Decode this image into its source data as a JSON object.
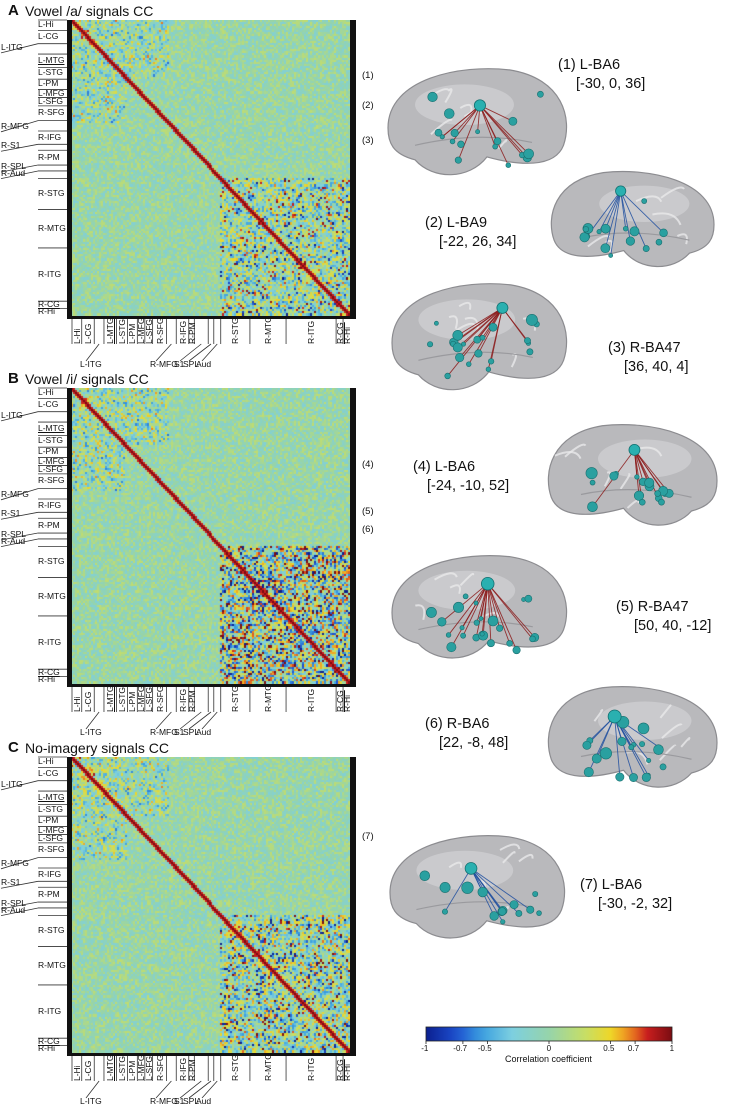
{
  "panels": [
    {
      "letter": "A",
      "title": "Vowel /a/ signals CC",
      "regions_y": [
        "L-Hi",
        "L-CG",
        "L-ITG",
        "L-MTG",
        "L-STG",
        "L-PM",
        "L-MFG",
        "L-SFG",
        "R-SFG",
        "R-MFG",
        "R-IFG",
        "R-S1",
        "R-PM",
        "R-SPL",
        "R-Aud",
        "R-STG",
        "R-MTG",
        "R-ITG",
        "R-CG",
        "R-Hi"
      ],
      "regions_x": [
        "L-Hi",
        "L-CG",
        "L-ITG",
        "L-MTG",
        "L-STG",
        "L-PM",
        "L-MFG",
        "L-SFG",
        "R-SFG",
        "R-MFG",
        "R-IFG",
        "R-PM",
        "S1",
        "SPL",
        "Aud",
        "R-STG",
        "R-MTG",
        "R-ITG",
        "R-CG",
        "R-Hi"
      ],
      "markers": [
        "(1)",
        "(2)",
        "(3)"
      ]
    },
    {
      "letter": "B",
      "title": "Vowel /i/ signals CC",
      "regions_y": [
        "L-Hi",
        "L-CG",
        "L-ITG",
        "L-MTG",
        "L-STG",
        "L-PM",
        "L-MFG",
        "L-SFG",
        "R-SFG",
        "R-MFG",
        "R-IFG",
        "R-S1",
        "R-PM",
        "R-SPL",
        "R-Aud",
        "R-STG",
        "R-MTG",
        "R-ITG",
        "R-CG",
        "R-Hi"
      ],
      "regions_x": [
        "L-Hi",
        "L-CG",
        "L-ITG",
        "L-MTG",
        "L-STG",
        "L-PM",
        "L-MFG",
        "L-SFG",
        "R-SFG",
        "R-MFG",
        "R-IFG",
        "R-PM",
        "S1",
        "SPL",
        "Aud",
        "R-STG",
        "R-MTG",
        "R-ITG",
        "R-CG",
        "R-Hi"
      ],
      "markers": [
        "(4)",
        "(5)",
        "(6)"
      ]
    },
    {
      "letter": "C",
      "title": "No-imagery signals CC",
      "regions_y": [
        "L-Hi",
        "L-CG",
        "L-ITG",
        "L-MTG",
        "L-STG",
        "L-PM",
        "L-MFG",
        "L-SFG",
        "R-SFG",
        "R-MFG",
        "R-IFG",
        "R-S1",
        "R-PM",
        "R-SPL",
        "R-Aud",
        "R-STG",
        "R-MTG",
        "R-ITG",
        "R-CG",
        "R-Hi"
      ],
      "regions_x": [
        "L-Hi",
        "L-CG",
        "L-ITG",
        "L-MTG",
        "L-STG",
        "L-PM",
        "L-MFG",
        "L-SFG",
        "R-SFG",
        "R-MFG",
        "R-IFG",
        "R-PM",
        "S1",
        "SPL",
        "Aud",
        "R-STG",
        "R-MTG",
        "R-ITG",
        "R-CG",
        "R-Hi"
      ],
      "markers": [
        "(7)"
      ]
    }
  ],
  "brains": [
    {
      "label": "(1) L-BA6",
      "coords": "[-30, 0, 36]"
    },
    {
      "label": "(2) L-BA9",
      "coords": "[-22, 26, 34]"
    },
    {
      "label": "(3) R-BA47",
      "coords": "[36, 40, 4]"
    },
    {
      "label": "(4) L-BA6",
      "coords": "[-24, -10, 52]"
    },
    {
      "label": "(5) R-BA47",
      "coords": "[50, 40, -12]"
    },
    {
      "label": "(6) R-BA6",
      "coords": "[22, -8, 48]"
    },
    {
      "label": "(7) L-BA6",
      "coords": "[-30, -2, 32]"
    }
  ],
  "colorbar": {
    "title": "Correlation coefficient",
    "ticks": [
      "-1",
      "-0.7",
      "-0.5",
      "0",
      "0.5",
      "0.7",
      "1"
    ],
    "tick_values": [
      -1,
      -0.7,
      -0.5,
      0,
      0.5,
      0.7,
      1
    ],
    "colors": [
      "#0b1f8f",
      "#1d4fd0",
      "#3aa0e0",
      "#7dcfe0",
      "#9fd6a0",
      "#d8e060",
      "#f2d21e",
      "#f08a20",
      "#c81e1e",
      "#7a0d12"
    ]
  },
  "chart_data": [
    {
      "type": "heatmap",
      "title": "Vowel /a/ signals CC",
      "range": [
        -1,
        1
      ],
      "diagonal": 1,
      "rows": [
        "L-Hi",
        "L-CG",
        "L-ITG",
        "L-MTG",
        "L-STG",
        "L-PM",
        "L-MFG",
        "L-SFG",
        "R-SFG",
        "R-MFG",
        "R-IFG",
        "R-S1",
        "R-PM",
        "R-SPL",
        "R-Aud",
        "R-STG",
        "R-MTG",
        "R-ITG",
        "R-CG",
        "R-Hi"
      ]
    },
    {
      "type": "heatmap",
      "title": "Vowel /i/ signals CC",
      "range": [
        -1,
        1
      ],
      "diagonal": 1,
      "rows": [
        "L-Hi",
        "L-CG",
        "L-ITG",
        "L-MTG",
        "L-STG",
        "L-PM",
        "L-MFG",
        "L-SFG",
        "R-SFG",
        "R-MFG",
        "R-IFG",
        "R-S1",
        "R-PM",
        "R-SPL",
        "R-Aud",
        "R-STG",
        "R-MTG",
        "R-ITG",
        "R-CG",
        "R-Hi"
      ]
    },
    {
      "type": "heatmap",
      "title": "No-imagery signals CC",
      "range": [
        -1,
        1
      ],
      "diagonal": 1,
      "rows": [
        "L-Hi",
        "L-CG",
        "L-ITG",
        "L-MTG",
        "L-STG",
        "L-PM",
        "L-MFG",
        "L-SFG",
        "R-SFG",
        "R-MFG",
        "R-IFG",
        "R-S1",
        "R-PM",
        "R-SPL",
        "R-Aud",
        "R-STG",
        "R-MTG",
        "R-ITG",
        "R-CG",
        "R-Hi"
      ]
    }
  ]
}
